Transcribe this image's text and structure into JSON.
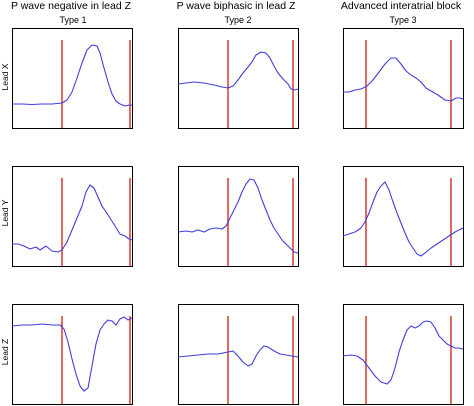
{
  "columns": [
    {
      "title": "P wave negative in lead Z",
      "type": "Type 1"
    },
    {
      "title": "P wave biphasic in lead Z",
      "type": "Type 2"
    },
    {
      "title": "Advanced interatrial block",
      "type": "Type 3"
    }
  ],
  "rows": [
    {
      "label": "Lead X"
    },
    {
      "label": "Lead Y"
    },
    {
      "label": "Lead Z"
    }
  ],
  "colors": {
    "trace": "#3f3fdc",
    "marker": "#d62a1e",
    "frame": "#000000"
  }
}
